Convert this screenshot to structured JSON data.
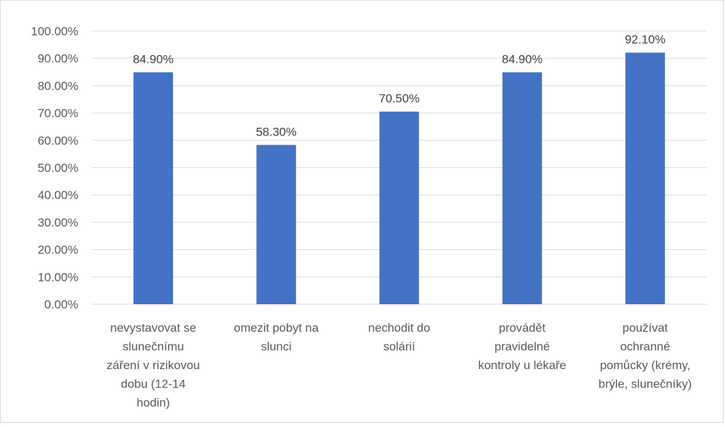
{
  "chart_data": {
    "type": "bar",
    "categories": [
      [
        "nevystavovat se",
        "slunečnímu",
        "záření v rizikovou",
        "dobu (12-14",
        "hodin)"
      ],
      [
        "omezit pobyt na",
        "slunci"
      ],
      [
        "nechodit do",
        "solárií"
      ],
      [
        "provádět",
        "pravidelné",
        "kontroly u lékaře"
      ],
      [
        "používat",
        "ochranné",
        "pomůcky (krémy,",
        "brýle, slunečníky)"
      ]
    ],
    "values": [
      84.9,
      58.3,
      70.5,
      84.9,
      92.1
    ],
    "data_labels": [
      "84.90%",
      "58.30%",
      "70.50%",
      "84.90%",
      "92.10%"
    ],
    "y_ticks": [
      "0.00%",
      "10.00%",
      "20.00%",
      "30.00%",
      "40.00%",
      "50.00%",
      "60.00%",
      "70.00%",
      "80.00%",
      "90.00%",
      "100.00%"
    ],
    "ylim": [
      0,
      100
    ],
    "grid": true,
    "bar_color": "#4472C4",
    "grid_color": "#d9d9d9",
    "text_color": "#595959"
  }
}
